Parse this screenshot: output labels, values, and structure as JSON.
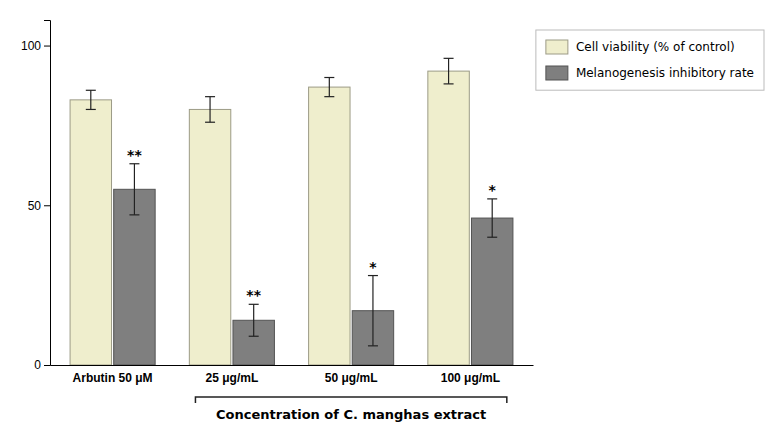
{
  "chart_data": {
    "type": "bar",
    "categories": [
      "Arbutin 50 μM",
      "25 μg/mL",
      "50 μg/mL",
      "100 μg/mL"
    ],
    "series": [
      {
        "name": "Cell viability (% of control)",
        "color": "#EFEECD",
        "values": [
          83,
          80,
          87,
          92
        ],
        "errors": [
          3,
          4,
          3,
          4
        ]
      },
      {
        "name": "Melanogenesis inhibitory rate",
        "color": "#7F7F7F",
        "values": [
          55,
          14,
          17,
          46
        ],
        "errors": [
          8,
          5,
          11,
          6
        ],
        "significance": [
          "**",
          "**",
          "*",
          "*"
        ]
      }
    ],
    "annotations": [
      {
        "text": "Concentration of C. manghas extract"
      }
    ],
    "ylim": [
      0,
      108
    ],
    "yticks": [
      0,
      50,
      100
    ],
    "grid": false,
    "legend": "right"
  }
}
